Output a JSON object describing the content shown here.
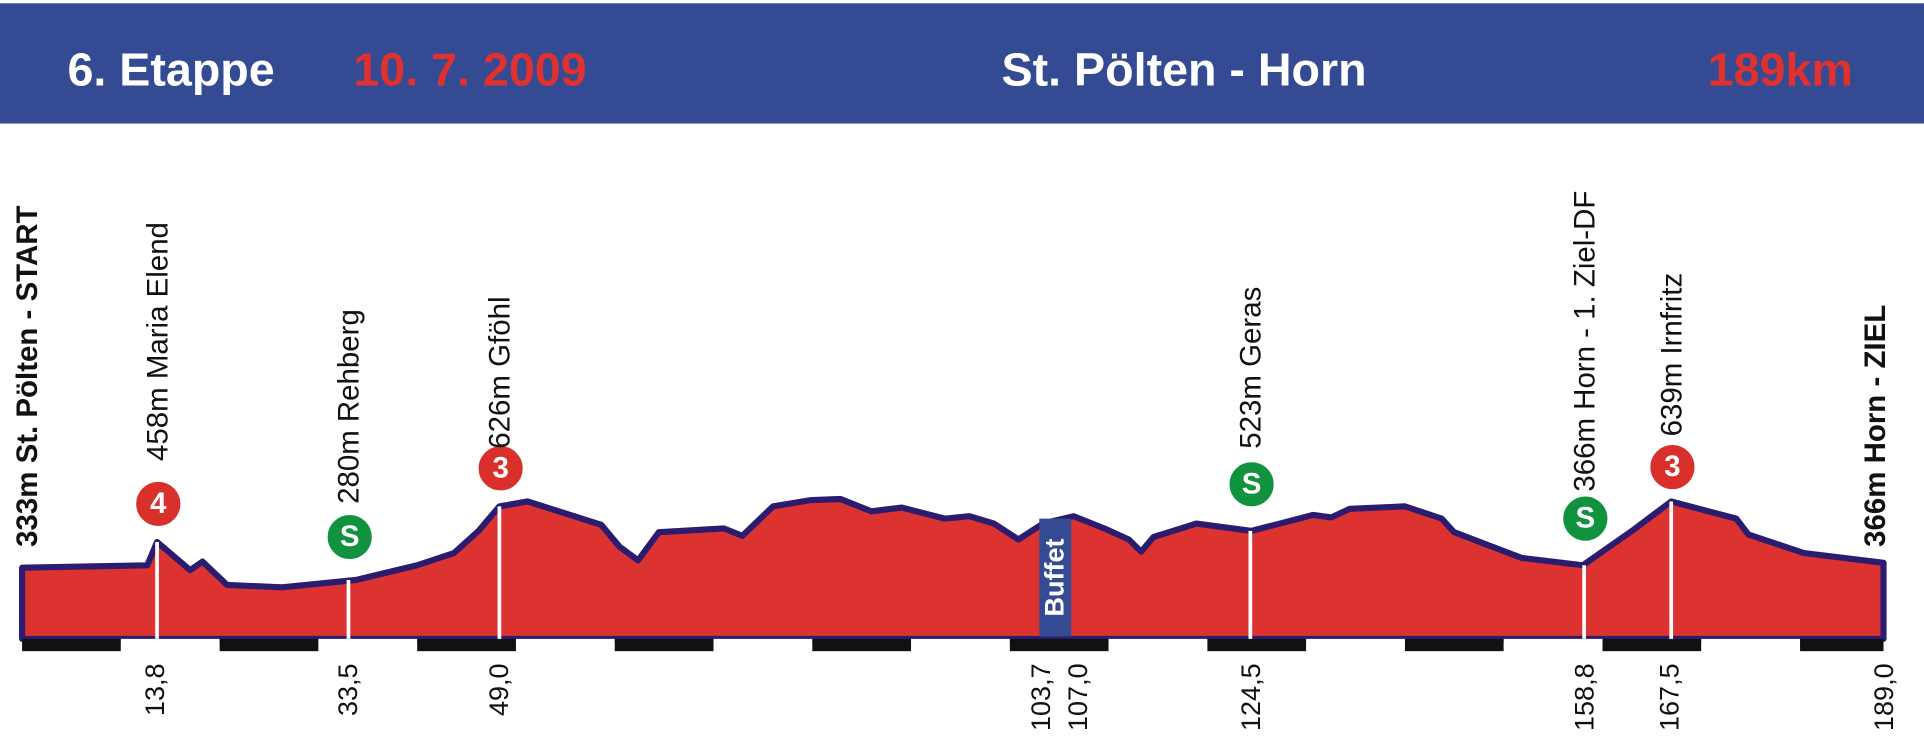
{
  "header": {
    "stage": "6. Etappe",
    "date": "10. 7. 2009",
    "route": "St. Pölten - Horn",
    "distance": "189km"
  },
  "start": "333m St. Pölten - START",
  "finish": "366m Horn - ZIEL",
  "buffet": "Buffet",
  "waypoints": [
    {
      "label": "458m Maria Elend",
      "icon": "4"
    },
    {
      "label": "280m Rehberg",
      "icon": "S"
    },
    {
      "label": "626m Gföhl",
      "icon": "3"
    },
    {
      "label": "523m Geras",
      "icon": "S"
    },
    {
      "label": "366m Horn - 1. Ziel-DF",
      "icon": "S"
    },
    {
      "label": "639m Irnfritz",
      "icon": "3"
    }
  ],
  "km_marks": [
    "13,8",
    "33,5",
    "49,0",
    "103,7",
    "107,0",
    "124,5",
    "158,8",
    "167,5",
    "189,0"
  ]
}
